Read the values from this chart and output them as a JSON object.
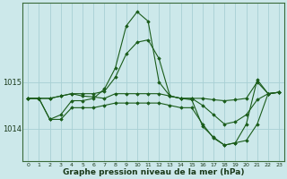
{
  "xlabel": "Graphe pression niveau de la mer (hPa)",
  "bg_color": "#cce8ea",
  "grid_color": "#a8d0d4",
  "line_color": "#1a5c1a",
  "ylim": [
    1013.3,
    1016.7
  ],
  "yticks": [
    1014,
    1015
  ],
  "ytick_labels": [
    "1014",
    "1015"
  ],
  "series": [
    [
      1014.65,
      1014.65,
      1014.65,
      1014.7,
      1014.75,
      1014.75,
      1014.75,
      1014.8,
      1015.1,
      1015.6,
      1015.85,
      1015.9,
      1015.5,
      1014.7,
      1014.65,
      1014.65,
      1014.65,
      1014.62,
      1014.6,
      1014.62,
      1014.65,
      1015.0,
      1014.75,
      1014.78
    ],
    [
      1014.65,
      1014.65,
      1014.65,
      1014.7,
      1014.75,
      1014.7,
      1014.68,
      1014.65,
      1014.75,
      1014.75,
      1014.75,
      1014.75,
      1014.75,
      1014.7,
      1014.65,
      1014.65,
      1014.5,
      1014.3,
      1014.1,
      1014.15,
      1014.3,
      1014.62,
      1014.75,
      1014.78
    ],
    [
      1014.65,
      1014.65,
      1014.2,
      1014.2,
      1014.45,
      1014.45,
      1014.45,
      1014.5,
      1014.55,
      1014.55,
      1014.55,
      1014.55,
      1014.55,
      1014.5,
      1014.45,
      1014.45,
      1014.1,
      1013.8,
      1013.65,
      1013.7,
      1013.75,
      1014.1,
      1014.75,
      1014.78
    ],
    [
      1014.65,
      1014.65,
      1014.2,
      1014.3,
      1014.6,
      1014.6,
      1014.65,
      1014.85,
      1015.3,
      1016.2,
      1016.5,
      1016.3,
      1015.0,
      1014.7,
      1014.65,
      1014.62,
      1014.05,
      1013.82,
      1013.65,
      1013.7,
      1014.1,
      1015.05,
      1014.75,
      1014.78
    ]
  ]
}
